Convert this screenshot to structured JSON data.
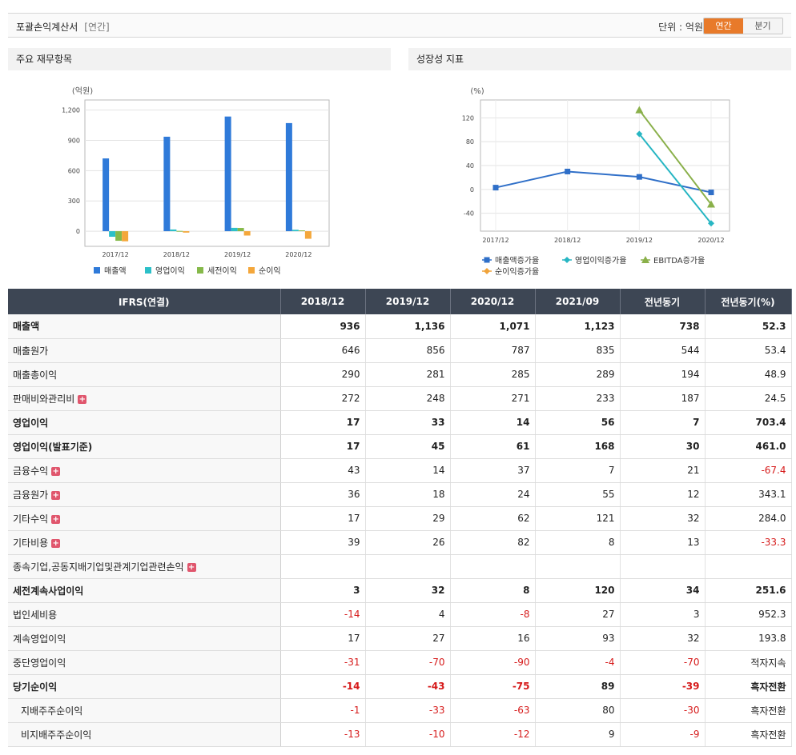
{
  "header": {
    "title": "포괄손익계산서",
    "subtitle": "[연간]",
    "unit": "단위 : 억원",
    "toggle_annual": "연간",
    "toggle_quarter": "분기"
  },
  "left_panel": {
    "title": "주요 재무항목",
    "unit_label": "(억원)"
  },
  "right_panel": {
    "title": "성장성 지표",
    "unit_label": "(%)"
  },
  "chart_data": [
    {
      "type": "bar",
      "categories": [
        "2017/12",
        "2018/12",
        "2019/12",
        "2020/12"
      ],
      "ylim": [
        -150,
        1300
      ],
      "yticks": [
        "1,200",
        "900",
        "600",
        "300",
        "0"
      ],
      "ytick_values": [
        1200,
        900,
        600,
        300,
        0
      ],
      "grid": true,
      "legend_position": "bottom",
      "series": [
        {
          "name": "매출액",
          "color": "#2f7ad9",
          "values": [
            721,
            936,
            1136,
            1071
          ]
        },
        {
          "name": "영업이익",
          "color": "#2cc0c8",
          "values": [
            -55,
            17,
            33,
            14
          ]
        },
        {
          "name": "세전이익",
          "color": "#86b94a",
          "values": [
            -95,
            3,
            32,
            8
          ]
        },
        {
          "name": "순이익",
          "color": "#f4a73b",
          "values": [
            -100,
            -14,
            -43,
            -75
          ]
        }
      ]
    },
    {
      "type": "line",
      "categories": [
        "2017/12",
        "2018/12",
        "2019/12",
        "2020/12"
      ],
      "ylim": [
        -70,
        150
      ],
      "yticks": [
        "120",
        "80",
        "40",
        "0",
        "-40"
      ],
      "ytick_values": [
        120,
        80,
        40,
        0,
        -40
      ],
      "grid": true,
      "legend_position": "bottom",
      "series": [
        {
          "name": "매출액증가율",
          "color": "#2f6fc8",
          "marker": "square",
          "values": [
            3,
            30,
            21,
            -5
          ]
        },
        {
          "name": "영업이익증가율",
          "color": "#27b6c3",
          "marker": "diamond",
          "values": [
            null,
            null,
            93,
            -57
          ]
        },
        {
          "name": "EBITDA증가율",
          "color": "#8ab04a",
          "marker": "triangle",
          "values": [
            null,
            null,
            133,
            -25
          ]
        },
        {
          "name": "순이익증가율",
          "color": "#f0a33a",
          "marker": "diamond",
          "values": [
            null,
            null,
            null,
            null
          ]
        }
      ]
    }
  ],
  "table": {
    "headers": [
      "IFRS(연결)",
      "2018/12",
      "2019/12",
      "2020/12",
      "2021/09",
      "전년동기",
      "전년동기(%)"
    ],
    "rows": [
      {
        "label": "매출액",
        "bold": true,
        "plus": false,
        "indent": false,
        "values": [
          "936",
          "1,136",
          "1,071",
          "1,123",
          "738",
          "52.3"
        ]
      },
      {
        "label": "매출원가",
        "bold": false,
        "plus": false,
        "indent": false,
        "values": [
          "646",
          "856",
          "787",
          "835",
          "544",
          "53.4"
        ]
      },
      {
        "label": "매출총이익",
        "bold": false,
        "plus": false,
        "indent": false,
        "values": [
          "290",
          "281",
          "285",
          "289",
          "194",
          "48.9"
        ]
      },
      {
        "label": "판매비와관리비",
        "bold": false,
        "plus": true,
        "indent": false,
        "values": [
          "272",
          "248",
          "271",
          "233",
          "187",
          "24.5"
        ]
      },
      {
        "label": "영업이익",
        "bold": true,
        "plus": false,
        "indent": false,
        "values": [
          "17",
          "33",
          "14",
          "56",
          "7",
          "703.4"
        ]
      },
      {
        "label": "영업이익(발표기준)",
        "bold": true,
        "plus": false,
        "indent": false,
        "values": [
          "17",
          "45",
          "61",
          "168",
          "30",
          "461.0"
        ]
      },
      {
        "label": "금융수익",
        "bold": false,
        "plus": true,
        "indent": false,
        "values": [
          "43",
          "14",
          "37",
          "7",
          "21",
          "-67.4"
        ]
      },
      {
        "label": "금융원가",
        "bold": false,
        "plus": true,
        "indent": false,
        "values": [
          "36",
          "18",
          "24",
          "55",
          "12",
          "343.1"
        ]
      },
      {
        "label": "기타수익",
        "bold": false,
        "plus": true,
        "indent": false,
        "values": [
          "17",
          "29",
          "62",
          "121",
          "32",
          "284.0"
        ]
      },
      {
        "label": "기타비용",
        "bold": false,
        "plus": true,
        "indent": false,
        "values": [
          "39",
          "26",
          "82",
          "8",
          "13",
          "-33.3"
        ]
      },
      {
        "label": "종속기업,공동지배기업및관계기업관련손익",
        "bold": false,
        "plus": true,
        "indent": false,
        "values": [
          "",
          "",
          "",
          "",
          "",
          ""
        ]
      },
      {
        "label": "세전계속사업이익",
        "bold": true,
        "plus": false,
        "indent": false,
        "values": [
          "3",
          "32",
          "8",
          "120",
          "34",
          "251.6"
        ]
      },
      {
        "label": "법인세비용",
        "bold": false,
        "plus": false,
        "indent": false,
        "values": [
          "-14",
          "4",
          "-8",
          "27",
          "3",
          "952.3"
        ]
      },
      {
        "label": "계속영업이익",
        "bold": false,
        "plus": false,
        "indent": false,
        "values": [
          "17",
          "27",
          "16",
          "93",
          "32",
          "193.8"
        ]
      },
      {
        "label": "중단영업이익",
        "bold": false,
        "plus": false,
        "indent": false,
        "values": [
          "-31",
          "-70",
          "-90",
          "-4",
          "-70",
          "적자지속"
        ]
      },
      {
        "label": "당기순이익",
        "bold": true,
        "plus": false,
        "indent": false,
        "values": [
          "-14",
          "-43",
          "-75",
          "89",
          "-39",
          "흑자전환"
        ]
      },
      {
        "label": "지배주주순이익",
        "bold": false,
        "plus": false,
        "indent": true,
        "values": [
          "-1",
          "-33",
          "-63",
          "80",
          "-30",
          "흑자전환"
        ]
      },
      {
        "label": "비지배주주순이익",
        "bold": false,
        "plus": false,
        "indent": true,
        "values": [
          "-13",
          "-10",
          "-12",
          "9",
          "-9",
          "흑자전환"
        ]
      }
    ]
  }
}
